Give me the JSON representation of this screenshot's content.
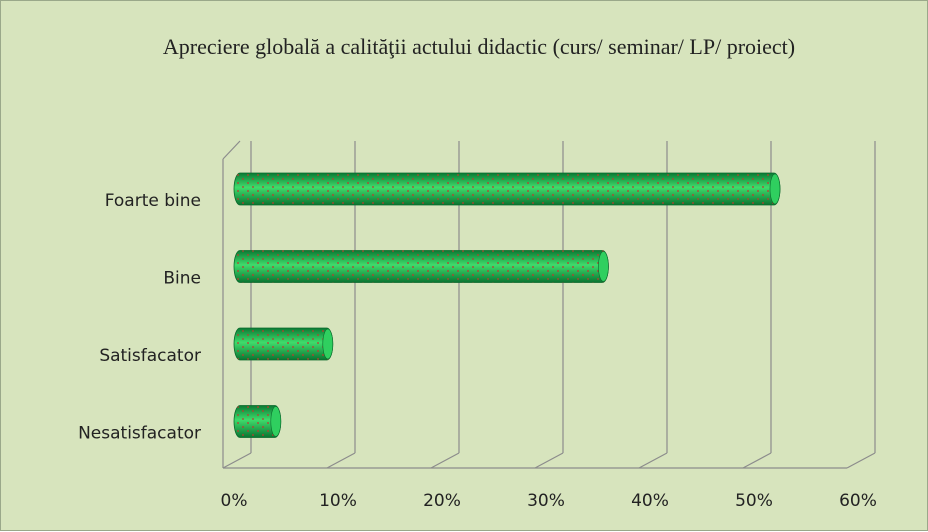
{
  "chart_data": {
    "type": "bar",
    "orientation": "horizontal",
    "title": "Apreciere globală a calităţii actului didactic (curs/ seminar/ LP/ proiect)",
    "categories": [
      "Foarte bine",
      "Bine",
      "Satisfacator",
      "Nesatisfacator"
    ],
    "values": [
      52.5,
      36,
      9.5,
      4.5
    ],
    "color": "#1fbf4f",
    "xlim": [
      0,
      60
    ],
    "xticks": [
      {
        "value": 0,
        "label": "0%"
      },
      {
        "value": 10,
        "label": "10%"
      },
      {
        "value": 20,
        "label": "20%"
      },
      {
        "value": 30,
        "label": "30%"
      },
      {
        "value": 40,
        "label": "40%"
      },
      {
        "value": 50,
        "label": "50%"
      },
      {
        "value": 60,
        "label": "60%"
      }
    ],
    "grid": true
  }
}
